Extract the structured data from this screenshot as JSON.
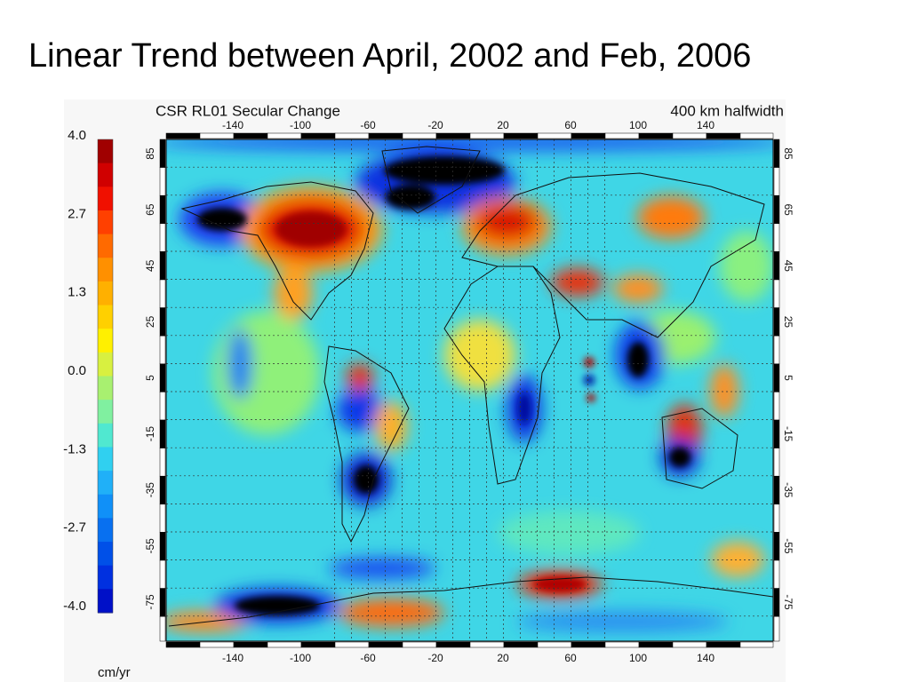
{
  "title": "Linear Trend between April, 2002 and Feb, 2006",
  "map": {
    "heading": "CSR RL01 Secular Change",
    "halfwidth": "400 km halfwidth",
    "colorbar": {
      "ticks": [
        "4.0",
        "2.7",
        "1.3",
        "0.0",
        "-1.3",
        "-2.7",
        "-4.0"
      ],
      "unit": "cm/yr"
    },
    "longitude_ticks": [
      "-140",
      "-100",
      "-60",
      "-20",
      "20",
      "60",
      "100",
      "140"
    ],
    "latitude_ticks": [
      "85",
      "65",
      "45",
      "25",
      "5",
      "-15",
      "-35",
      "-55",
      "-75"
    ]
  }
}
